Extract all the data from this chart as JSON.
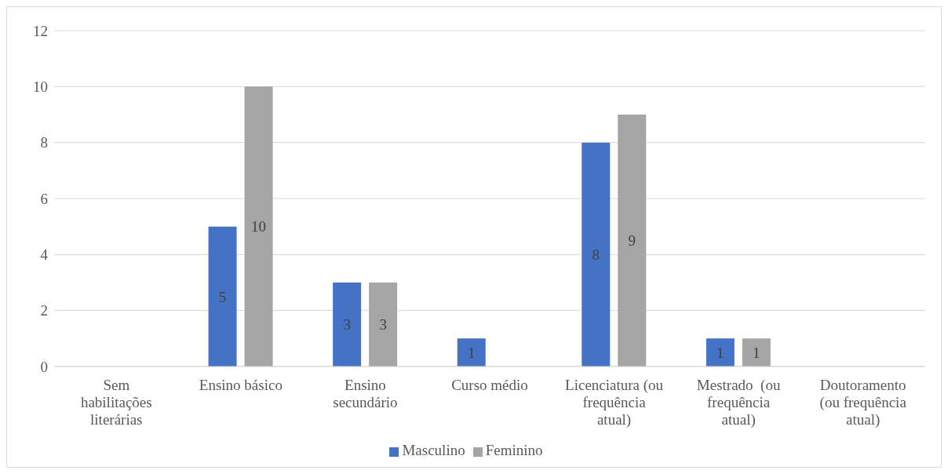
{
  "chart_data": {
    "type": "bar",
    "categories": [
      "Sem habilitações literárias",
      "Ensino básico",
      "Ensino secundário",
      "Curso médio",
      "Licenciatura (ou frequência atual)",
      "Mestrado  (ou frequência atual)",
      "Doutoramento (ou frequência atual)"
    ],
    "series": [
      {
        "name": "Masculino",
        "color": "#4472c4",
        "values": [
          null,
          5,
          3,
          1,
          8,
          1,
          null
        ]
      },
      {
        "name": "Feminino",
        "color": "#a5a5a5",
        "values": [
          null,
          10,
          3,
          null,
          9,
          1,
          null
        ]
      }
    ],
    "ylim": [
      0,
      12
    ],
    "yticks": [
      0,
      2,
      4,
      6,
      8,
      10,
      12
    ],
    "grid": "y",
    "legend": "bottom",
    "data_labels": true
  }
}
